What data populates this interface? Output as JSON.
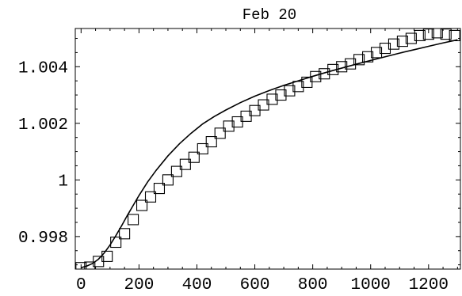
{
  "chart_data": {
    "type": "scatter",
    "title": "Feb 20",
    "xlabel": "",
    "ylabel": "",
    "xlim": [
      -20,
      1310
    ],
    "ylim": [
      0.99685,
      1.00535
    ],
    "x_ticks": [
      0,
      200,
      400,
      600,
      800,
      1000,
      1200
    ],
    "x_tick_labels": [
      "0",
      "200",
      "400",
      "600",
      "800",
      "1000",
      "1200"
    ],
    "y_ticks": [
      0.998,
      1.0,
      1.002,
      1.004
    ],
    "y_tick_labels": [
      "0.998",
      "1",
      "1.002",
      "1.004"
    ],
    "grid": false,
    "series": [
      {
        "type": "scatter",
        "marker": "open-square",
        "x": [
          0,
          30,
          60,
          90,
          120,
          150,
          180,
          210,
          240,
          270,
          300,
          330,
          360,
          390,
          420,
          450,
          480,
          510,
          540,
          570,
          600,
          630,
          660,
          690,
          720,
          750,
          780,
          810,
          840,
          870,
          900,
          930,
          960,
          990,
          1020,
          1050,
          1080,
          1110,
          1140,
          1170,
          1200,
          1230,
          1260,
          1290
        ],
        "y": [
          0.9969,
          0.99692,
          0.99712,
          0.9973,
          0.9978,
          0.9981,
          0.9986,
          0.9991,
          0.9994,
          0.9997,
          1.0,
          1.0003,
          1.00055,
          1.0008,
          1.0011,
          1.00135,
          1.00165,
          1.0019,
          1.00205,
          1.00225,
          1.00245,
          1.00265,
          1.00285,
          1.003,
          1.00315,
          1.0033,
          1.00345,
          1.00365,
          1.00375,
          1.0039,
          1.004,
          1.0041,
          1.00425,
          1.00435,
          1.0045,
          1.00465,
          1.0048,
          1.0049,
          1.005,
          1.0051,
          1.00515,
          1.0052,
          1.00515,
          1.0051
        ]
      },
      {
        "type": "line",
        "x": [
          0,
          20,
          40,
          60,
          80,
          100,
          120,
          140,
          160,
          180,
          200,
          230,
          260,
          300,
          340,
          380,
          420,
          460,
          500,
          550,
          600,
          650,
          700,
          750,
          800,
          850,
          900,
          950,
          1000,
          1050,
          1100,
          1150,
          1200,
          1250,
          1300
        ],
        "y": [
          0.9969,
          0.99696,
          0.99705,
          0.9972,
          0.99742,
          0.9977,
          0.99803,
          0.99838,
          0.99875,
          0.9991,
          0.99945,
          0.99993,
          1.00035,
          1.00085,
          1.00128,
          1.00165,
          1.00198,
          1.00224,
          1.00247,
          1.00273,
          1.00296,
          1.00316,
          1.00334,
          1.0035,
          1.00366,
          1.00381,
          1.00395,
          1.00409,
          1.00422,
          1.00435,
          1.00448,
          1.0046,
          1.00472,
          1.00484,
          1.00495
        ]
      }
    ]
  }
}
